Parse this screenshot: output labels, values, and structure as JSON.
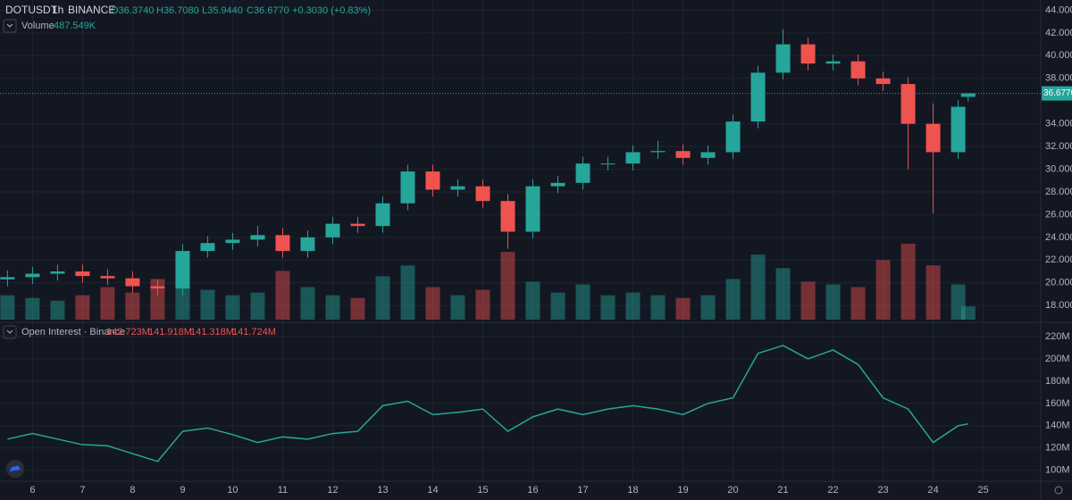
{
  "chart_data": {
    "type": "candlestick",
    "header": {
      "symbol": "DOTUSDT",
      "interval": "1h",
      "exchange": "BINANCE",
      "open": "O36.3740",
      "high": "H36.7080",
      "low": "L35.9440",
      "close": "C36.6770",
      "change": "+0.3030 (+0.83%)"
    },
    "volume_legend": {
      "name": "Volume",
      "value": "487.549K"
    },
    "oi_legend": {
      "name": "Open Interest · Binance",
      "values": [
        "142.723M",
        "141.918M",
        "141.318M",
        "141.724M"
      ]
    },
    "up_color": "#26a69a",
    "down_color": "#ef5350",
    "x": [
      5.5,
      6,
      6.5,
      7,
      7.5,
      8,
      8.5,
      9,
      9.5,
      10,
      10.5,
      11,
      11.5,
      12,
      12.5,
      13,
      13.5,
      14,
      14.5,
      15,
      15.5,
      16,
      16.5,
      17,
      17.5,
      18,
      18.5,
      19,
      19.5,
      20,
      20.5,
      21,
      21.5,
      22,
      22.5,
      23,
      23.5,
      24,
      24.5,
      24.7
    ],
    "open": [
      20.3,
      20.5,
      20.8,
      21,
      20.6,
      20.4,
      19.7,
      19.5,
      22.8,
      23.5,
      23.8,
      24.2,
      22.8,
      24,
      25.2,
      25,
      27,
      29.8,
      28.2,
      28.5,
      27.2,
      24.5,
      28.5,
      28.8,
      30.5,
      30.5,
      31.5,
      31.6,
      31,
      31.5,
      34.2,
      38.5,
      41,
      39.3,
      39.5,
      38,
      37.5,
      34,
      31.5,
      36.374
    ],
    "high": [
      21.1,
      21.4,
      21.6,
      21.6,
      21.2,
      21.0,
      20.3,
      23.4,
      24.1,
      24.4,
      25,
      24.8,
      24.6,
      25.8,
      25.8,
      27.6,
      30.4,
      30.4,
      29.1,
      29.1,
      27.8,
      29.1,
      29.4,
      31.1,
      31.1,
      32.1,
      32.5,
      32.2,
      32.1,
      34.8,
      39.1,
      42.3,
      41.6,
      40.1,
      40.1,
      38.6,
      38.1,
      35.8,
      36.1,
      36.708
    ],
    "low": [
      19.7,
      19.9,
      20.2,
      20,
      19.8,
      19.1,
      18.9,
      18.9,
      22.2,
      22.9,
      23.2,
      22.2,
      22.2,
      23.4,
      24.4,
      24.4,
      26.4,
      27.6,
      27.6,
      26.6,
      23,
      23.9,
      27.9,
      28.2,
      29.9,
      29.9,
      30.9,
      30.4,
      30.4,
      30.9,
      33.6,
      37.9,
      38.7,
      38.7,
      37.4,
      36.9,
      30,
      26.1,
      30.9,
      35.944
    ],
    "close": [
      20.5,
      20.8,
      21,
      20.6,
      20.4,
      19.7,
      19.5,
      22.8,
      23.5,
      23.8,
      24.2,
      22.8,
      24,
      25.2,
      25,
      27,
      29.8,
      28.2,
      28.5,
      27.2,
      24.5,
      28.5,
      28.8,
      30.5,
      30.5,
      31.5,
      31.6,
      31,
      31.5,
      34.2,
      38.5,
      41,
      39.3,
      39.5,
      38,
      37.5,
      34,
      31.5,
      35.5,
      36.677
    ],
    "volume": [
      900,
      800,
      700,
      900,
      1200,
      1000,
      1500,
      2200,
      1100,
      900,
      1000,
      1800,
      1200,
      900,
      800,
      1600,
      2000,
      1200,
      900,
      1100,
      2500,
      1400,
      1000,
      1300,
      900,
      1000,
      900,
      800,
      900,
      1500,
      2400,
      1900,
      1400,
      1300,
      1200,
      2200,
      2800,
      2000,
      1300,
      487.549
    ],
    "open_interest": [
      128,
      133,
      128,
      123,
      122,
      115,
      108,
      135,
      138,
      132,
      125,
      130,
      128,
      133,
      135,
      158,
      162,
      150,
      152,
      155,
      135,
      148,
      155,
      150,
      155,
      158,
      155,
      150,
      160,
      165,
      205,
      212,
      200,
      208,
      195,
      165,
      155,
      125,
      140,
      141.724
    ],
    "xlim": [
      5.35,
      26.15
    ],
    "xticks": [
      6,
      7,
      8,
      9,
      10,
      11,
      12,
      13,
      14,
      15,
      16,
      17,
      18,
      19,
      20,
      21,
      22,
      23,
      24,
      25
    ],
    "ylim": [
      16.6,
      44.9
    ],
    "yticks": [
      {
        "value": 18,
        "label": "18.0000"
      },
      {
        "value": 20,
        "label": "20.0000"
      },
      {
        "value": 22,
        "label": "22.0000"
      },
      {
        "value": 24,
        "label": "24.0000"
      },
      {
        "value": 26,
        "label": "26.0000"
      },
      {
        "value": 28,
        "label": "28.0000"
      },
      {
        "value": 30,
        "label": "30.0000"
      },
      {
        "value": 32,
        "label": "32.0000"
      },
      {
        "value": 34,
        "label": "34.0000"
      },
      {
        "value": 38,
        "label": "38.0000"
      },
      {
        "value": 40,
        "label": "40.0000"
      },
      {
        "value": 42,
        "label": "42.0000"
      },
      {
        "value": 44,
        "label": "44.0000"
      }
    ],
    "last_price": {
      "value": 36.677,
      "label": "36.6770"
    },
    "y2lim": [
      91,
      232
    ],
    "y2ticks": [
      {
        "value": 100,
        "label": "100M"
      },
      {
        "value": 120,
        "label": "120M"
      },
      {
        "value": 140,
        "label": "140M"
      },
      {
        "value": 160,
        "label": "160M"
      },
      {
        "value": 180,
        "label": "180M"
      },
      {
        "value": 200,
        "label": "200M"
      },
      {
        "value": 220,
        "label": "220M"
      }
    ],
    "grid": true
  }
}
